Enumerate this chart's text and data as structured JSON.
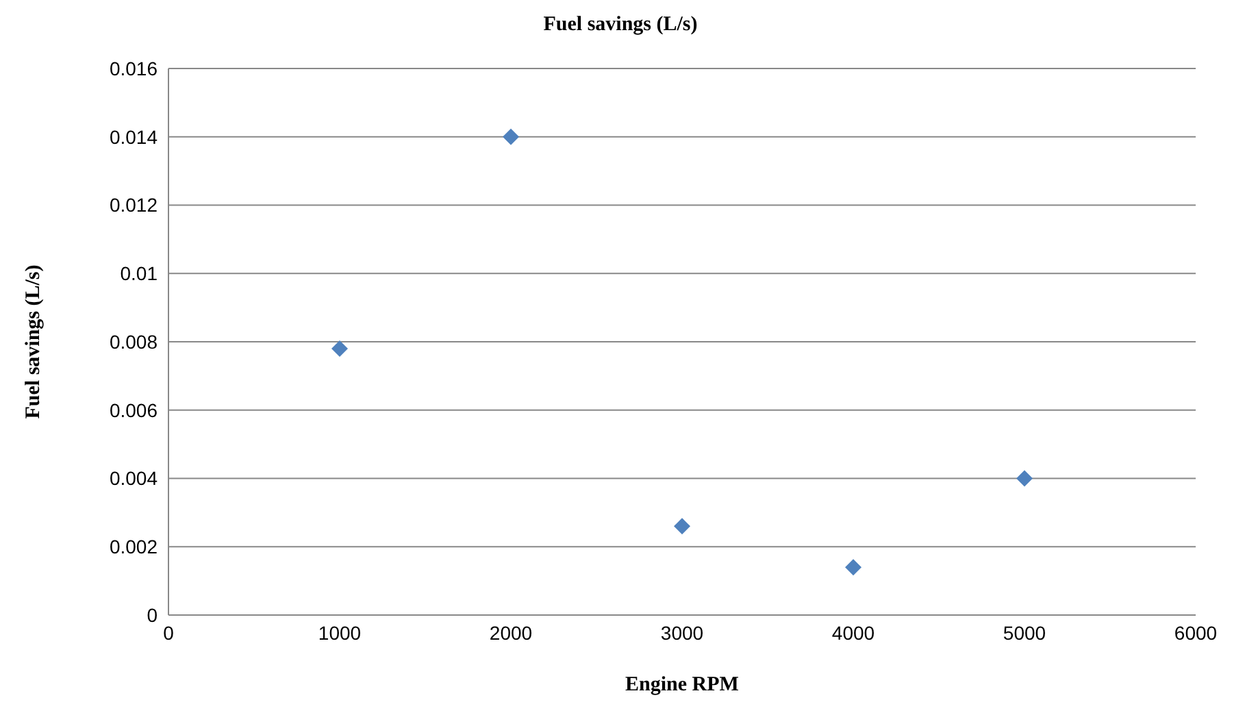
{
  "chart_data": {
    "type": "scatter",
    "title": "Fuel savings (L/s)",
    "xlabel": "Engine RPM",
    "ylabel": "Fuel savings (L/s)",
    "x": [
      1000,
      2000,
      3000,
      4000,
      5000
    ],
    "series": [
      {
        "color": "#4f81bd",
        "values": [
          0.0078,
          0.014,
          0.0026,
          0.0014,
          0.004
        ]
      }
    ],
    "xlim": [
      0,
      6000
    ],
    "xticks": [
      0,
      1000,
      2000,
      3000,
      4000,
      5000,
      6000
    ],
    "ylim": [
      0,
      0.016
    ],
    "yticks": [
      0,
      0.002,
      0.004,
      0.006,
      0.008,
      0.01,
      0.012,
      0.014,
      0.016
    ],
    "grid": "y",
    "marker": "diamond"
  }
}
